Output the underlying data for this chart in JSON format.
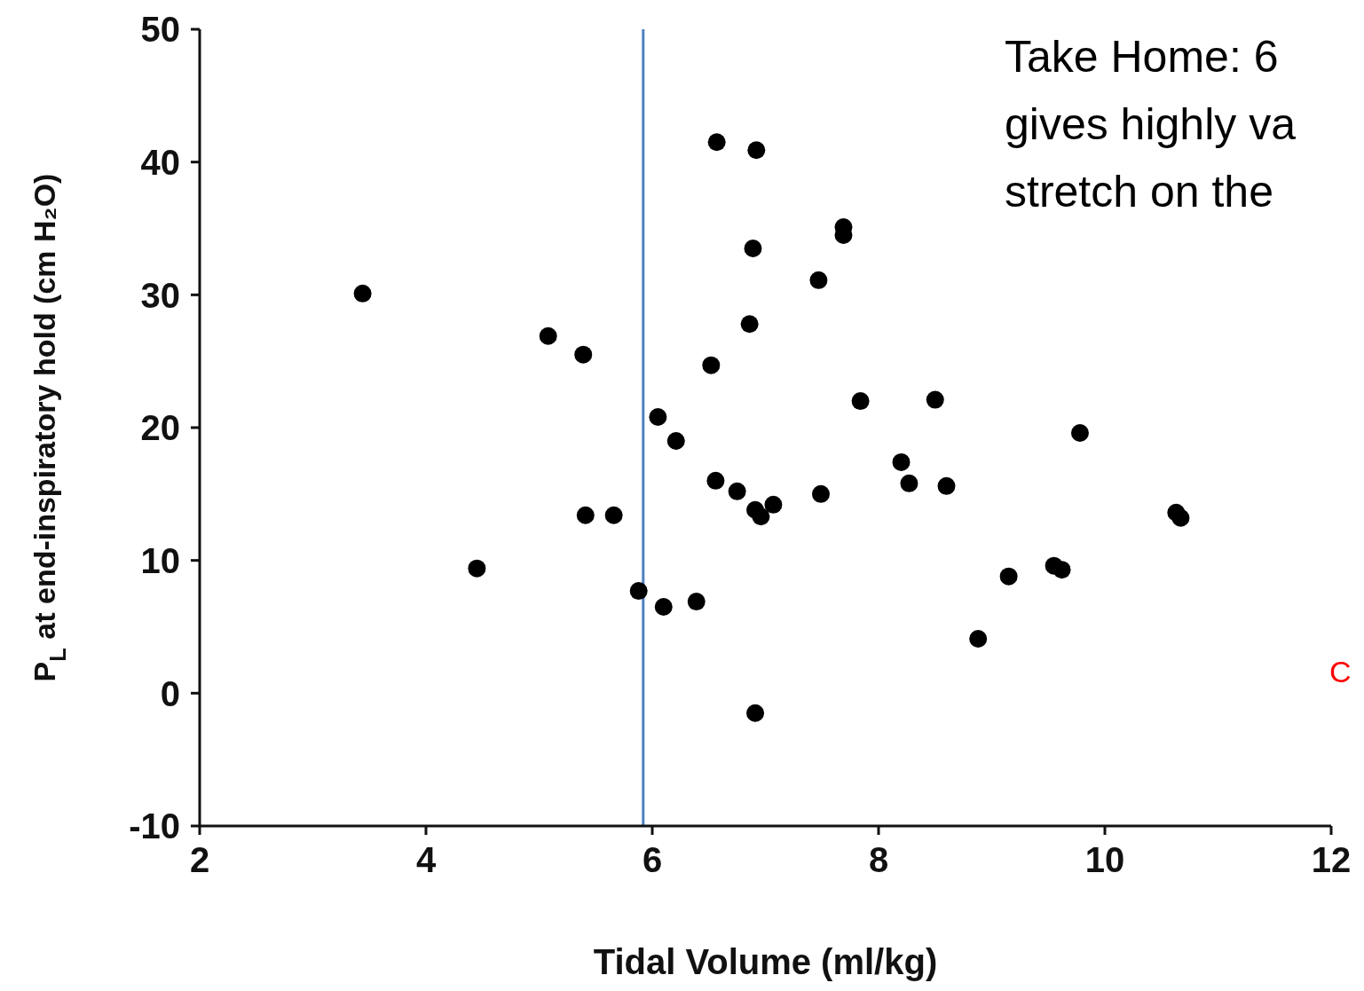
{
  "chart_data": {
    "type": "scatter",
    "xlabel": "Tidal Volume (ml/kg)",
    "ylabel": "P$_{L}$ at end-inspiratory hold (cm H₂O)",
    "xlim": [
      2,
      12
    ],
    "xticks": [
      2,
      4,
      6,
      8,
      10,
      12
    ],
    "ylim": [
      -10,
      50
    ],
    "yticks": [
      -10,
      0,
      10,
      20,
      30,
      40,
      50
    ],
    "grid": false,
    "legend": false,
    "marker": "circle",
    "series": [
      {
        "color": "#000000",
        "x": [
          3.44,
          4.45,
          5.08,
          5.39,
          5.41,
          5.66,
          5.88,
          6.05,
          6.1,
          6.21,
          6.39,
          6.52,
          6.56,
          6.57,
          6.75,
          6.86,
          6.89,
          6.92,
          6.91,
          6.91,
          6.96,
          7.07,
          7.47,
          7.49,
          7.69,
          7.69,
          7.84,
          8.2,
          8.27,
          8.5,
          8.6,
          8.88,
          9.15,
          9.55,
          9.62,
          9.78,
          10.63,
          10.67
        ],
        "values": [
          30.1,
          9.4,
          26.9,
          25.5,
          13.4,
          13.4,
          7.7,
          20.8,
          6.5,
          19,
          6.9,
          24.7,
          16,
          41.5,
          15.2,
          27.8,
          33.5,
          40.9,
          -1.5,
          13.8,
          13.3,
          14.2,
          31.1,
          15,
          35.1,
          34.5,
          22,
          17.4,
          15.8,
          22.1,
          15.6,
          4.1,
          8.8,
          9.6,
          9.3,
          19.6,
          13.6,
          13.2
        ]
      }
    ],
    "ref_lines": [
      {
        "axis": "x",
        "value": 5.92,
        "color": "#4f81bd"
      }
    ],
    "annotations": [
      "Take Home: 6\ngives highly va\nstretch on the",
      "C"
    ]
  }
}
